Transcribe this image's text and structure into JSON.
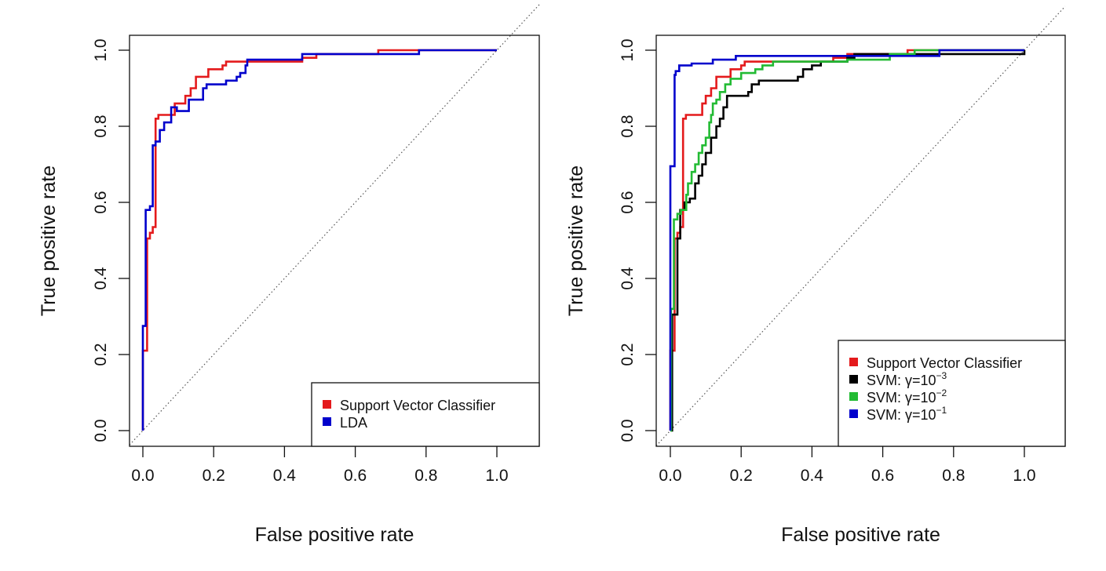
{
  "chart_data": [
    {
      "type": "line",
      "title": "",
      "xlabel": "False positive rate",
      "ylabel": "True positive rate",
      "xlim": [
        0,
        1
      ],
      "ylim": [
        0,
        1
      ],
      "xticks": [
        "0.0",
        "0.2",
        "0.4",
        "0.6",
        "0.8",
        "1.0"
      ],
      "yticks": [
        "0.0",
        "0.2",
        "0.4",
        "0.6",
        "0.8",
        "1.0"
      ],
      "grid": false,
      "legend_position": "bottom-right",
      "reference_line": {
        "style": "dotted",
        "from": [
          0,
          0
        ],
        "to": [
          1,
          1
        ]
      },
      "series": [
        {
          "name": "Support Vector Classifier",
          "color": "#e41a1c",
          "points": [
            [
              0,
              0
            ],
            [
              0,
              0.21
            ],
            [
              0.012,
              0.21
            ],
            [
              0.012,
              0.505
            ],
            [
              0.02,
              0.505
            ],
            [
              0.02,
              0.52
            ],
            [
              0.028,
              0.52
            ],
            [
              0.028,
              0.535
            ],
            [
              0.036,
              0.535
            ],
            [
              0.036,
              0.82
            ],
            [
              0.044,
              0.82
            ],
            [
              0.044,
              0.83
            ],
            [
              0.09,
              0.83
            ],
            [
              0.09,
              0.86
            ],
            [
              0.12,
              0.86
            ],
            [
              0.12,
              0.88
            ],
            [
              0.135,
              0.88
            ],
            [
              0.135,
              0.9
            ],
            [
              0.15,
              0.9
            ],
            [
              0.15,
              0.93
            ],
            [
              0.185,
              0.93
            ],
            [
              0.185,
              0.95
            ],
            [
              0.225,
              0.95
            ],
            [
              0.225,
              0.96
            ],
            [
              0.235,
              0.96
            ],
            [
              0.235,
              0.97
            ],
            [
              0.45,
              0.97
            ],
            [
              0.45,
              0.98
            ],
            [
              0.49,
              0.98
            ],
            [
              0.49,
              0.99
            ],
            [
              0.665,
              0.99
            ],
            [
              0.665,
              1.0
            ],
            [
              1.0,
              1.0
            ]
          ]
        },
        {
          "name": "LDA",
          "color": "#0000cc",
          "points": [
            [
              0,
              0
            ],
            [
              0,
              0.275
            ],
            [
              0.008,
              0.275
            ],
            [
              0.008,
              0.58
            ],
            [
              0.02,
              0.58
            ],
            [
              0.02,
              0.59
            ],
            [
              0.028,
              0.59
            ],
            [
              0.028,
              0.75
            ],
            [
              0.036,
              0.75
            ],
            [
              0.036,
              0.76
            ],
            [
              0.048,
              0.76
            ],
            [
              0.048,
              0.79
            ],
            [
              0.06,
              0.79
            ],
            [
              0.06,
              0.81
            ],
            [
              0.08,
              0.81
            ],
            [
              0.08,
              0.85
            ],
            [
              0.096,
              0.85
            ],
            [
              0.096,
              0.84
            ],
            [
              0.13,
              0.84
            ],
            [
              0.13,
              0.87
            ],
            [
              0.17,
              0.87
            ],
            [
              0.17,
              0.9
            ],
            [
              0.18,
              0.9
            ],
            [
              0.18,
              0.91
            ],
            [
              0.235,
              0.91
            ],
            [
              0.235,
              0.92
            ],
            [
              0.265,
              0.92
            ],
            [
              0.265,
              0.93
            ],
            [
              0.275,
              0.93
            ],
            [
              0.275,
              0.94
            ],
            [
              0.29,
              0.94
            ],
            [
              0.29,
              0.96
            ],
            [
              0.295,
              0.96
            ],
            [
              0.295,
              0.975
            ],
            [
              0.45,
              0.975
            ],
            [
              0.45,
              0.99
            ],
            [
              0.78,
              0.99
            ],
            [
              0.78,
              1.0
            ],
            [
              1.0,
              1.0
            ]
          ]
        }
      ]
    },
    {
      "type": "line",
      "title": "",
      "xlabel": "False positive rate",
      "ylabel": "True positive rate",
      "xlim": [
        0,
        1
      ],
      "ylim": [
        0,
        1
      ],
      "xticks": [
        "0.0",
        "0.2",
        "0.4",
        "0.6",
        "0.8",
        "1.0"
      ],
      "yticks": [
        "0.0",
        "0.2",
        "0.4",
        "0.6",
        "0.8",
        "1.0"
      ],
      "grid": false,
      "legend_position": "bottom-right",
      "reference_line": {
        "style": "dotted",
        "from": [
          0,
          0
        ],
        "to": [
          1,
          1
        ]
      },
      "series": [
        {
          "name": "Support Vector Classifier",
          "label_base": "Support Vector Classifier",
          "label_sup": "",
          "color": "#e41a1c",
          "points": [
            [
              0,
              0
            ],
            [
              0,
              0.21
            ],
            [
              0.012,
              0.21
            ],
            [
              0.012,
              0.505
            ],
            [
              0.02,
              0.505
            ],
            [
              0.02,
              0.52
            ],
            [
              0.028,
              0.52
            ],
            [
              0.028,
              0.535
            ],
            [
              0.036,
              0.535
            ],
            [
              0.036,
              0.82
            ],
            [
              0.044,
              0.82
            ],
            [
              0.044,
              0.83
            ],
            [
              0.09,
              0.83
            ],
            [
              0.09,
              0.86
            ],
            [
              0.1,
              0.86
            ],
            [
              0.1,
              0.88
            ],
            [
              0.115,
              0.88
            ],
            [
              0.115,
              0.9
            ],
            [
              0.13,
              0.9
            ],
            [
              0.13,
              0.93
            ],
            [
              0.17,
              0.93
            ],
            [
              0.17,
              0.95
            ],
            [
              0.2,
              0.95
            ],
            [
              0.2,
              0.96
            ],
            [
              0.21,
              0.96
            ],
            [
              0.21,
              0.97
            ],
            [
              0.46,
              0.97
            ],
            [
              0.46,
              0.98
            ],
            [
              0.5,
              0.98
            ],
            [
              0.5,
              0.99
            ],
            [
              0.67,
              0.99
            ],
            [
              0.67,
              1.0
            ],
            [
              1.0,
              1.0
            ]
          ]
        },
        {
          "name": "SVM: γ=10^-3",
          "label_base": "SVM: γ=10",
          "label_sup": "−3",
          "color": "#000000",
          "points": [
            [
              0,
              0
            ],
            [
              0.005,
              0
            ],
            [
              0.005,
              0.305
            ],
            [
              0.02,
              0.305
            ],
            [
              0.02,
              0.505
            ],
            [
              0.028,
              0.505
            ],
            [
              0.028,
              0.58
            ],
            [
              0.04,
              0.58
            ],
            [
              0.04,
              0.6
            ],
            [
              0.055,
              0.6
            ],
            [
              0.055,
              0.61
            ],
            [
              0.07,
              0.61
            ],
            [
              0.07,
              0.65
            ],
            [
              0.08,
              0.65
            ],
            [
              0.08,
              0.67
            ],
            [
              0.09,
              0.67
            ],
            [
              0.09,
              0.7
            ],
            [
              0.1,
              0.7
            ],
            [
              0.1,
              0.73
            ],
            [
              0.115,
              0.73
            ],
            [
              0.115,
              0.77
            ],
            [
              0.13,
              0.77
            ],
            [
              0.13,
              0.8
            ],
            [
              0.14,
              0.8
            ],
            [
              0.14,
              0.82
            ],
            [
              0.15,
              0.82
            ],
            [
              0.15,
              0.85
            ],
            [
              0.16,
              0.85
            ],
            [
              0.16,
              0.88
            ],
            [
              0.22,
              0.88
            ],
            [
              0.22,
              0.89
            ],
            [
              0.23,
              0.89
            ],
            [
              0.23,
              0.91
            ],
            [
              0.25,
              0.91
            ],
            [
              0.25,
              0.92
            ],
            [
              0.36,
              0.92
            ],
            [
              0.36,
              0.93
            ],
            [
              0.375,
              0.93
            ],
            [
              0.375,
              0.95
            ],
            [
              0.4,
              0.95
            ],
            [
              0.4,
              0.96
            ],
            [
              0.425,
              0.96
            ],
            [
              0.425,
              0.97
            ],
            [
              0.5,
              0.97
            ],
            [
              0.5,
              0.98
            ],
            [
              0.52,
              0.98
            ],
            [
              0.52,
              0.99
            ],
            [
              1.0,
              0.99
            ],
            [
              1.0,
              1.0
            ]
          ]
        },
        {
          "name": "SVM: γ=10^-2",
          "label_base": "SVM: γ=10",
          "label_sup": "−2",
          "color": "#22bb33",
          "points": [
            [
              0,
              0
            ],
            [
              0.002,
              0
            ],
            [
              0.002,
              0.32
            ],
            [
              0.01,
              0.32
            ],
            [
              0.01,
              0.555
            ],
            [
              0.02,
              0.555
            ],
            [
              0.02,
              0.57
            ],
            [
              0.03,
              0.57
            ],
            [
              0.03,
              0.58
            ],
            [
              0.045,
              0.58
            ],
            [
              0.045,
              0.62
            ],
            [
              0.05,
              0.62
            ],
            [
              0.05,
              0.65
            ],
            [
              0.06,
              0.65
            ],
            [
              0.06,
              0.68
            ],
            [
              0.07,
              0.68
            ],
            [
              0.07,
              0.7
            ],
            [
              0.08,
              0.7
            ],
            [
              0.08,
              0.73
            ],
            [
              0.09,
              0.73
            ],
            [
              0.09,
              0.75
            ],
            [
              0.1,
              0.75
            ],
            [
              0.1,
              0.77
            ],
            [
              0.11,
              0.77
            ],
            [
              0.11,
              0.81
            ],
            [
              0.115,
              0.81
            ],
            [
              0.115,
              0.83
            ],
            [
              0.12,
              0.83
            ],
            [
              0.12,
              0.86
            ],
            [
              0.13,
              0.86
            ],
            [
              0.13,
              0.87
            ],
            [
              0.14,
              0.87
            ],
            [
              0.14,
              0.89
            ],
            [
              0.155,
              0.89
            ],
            [
              0.155,
              0.91
            ],
            [
              0.17,
              0.91
            ],
            [
              0.17,
              0.925
            ],
            [
              0.2,
              0.925
            ],
            [
              0.2,
              0.94
            ],
            [
              0.24,
              0.94
            ],
            [
              0.24,
              0.95
            ],
            [
              0.26,
              0.95
            ],
            [
              0.26,
              0.96
            ],
            [
              0.29,
              0.96
            ],
            [
              0.29,
              0.97
            ],
            [
              0.5,
              0.97
            ],
            [
              0.5,
              0.975
            ],
            [
              0.62,
              0.975
            ],
            [
              0.62,
              0.99
            ],
            [
              0.69,
              0.99
            ],
            [
              0.69,
              1.0
            ],
            [
              1.0,
              1.0
            ]
          ]
        },
        {
          "name": "SVM: γ=10^-1",
          "label_base": "SVM: γ=10",
          "label_sup": "−1",
          "color": "#0000cc",
          "points": [
            [
              0,
              0
            ],
            [
              0,
              0.695
            ],
            [
              0.012,
              0.695
            ],
            [
              0.012,
              0.935
            ],
            [
              0.015,
              0.935
            ],
            [
              0.015,
              0.945
            ],
            [
              0.025,
              0.945
            ],
            [
              0.025,
              0.96
            ],
            [
              0.06,
              0.96
            ],
            [
              0.06,
              0.965
            ],
            [
              0.12,
              0.965
            ],
            [
              0.12,
              0.975
            ],
            [
              0.185,
              0.975
            ],
            [
              0.185,
              0.985
            ],
            [
              0.76,
              0.985
            ],
            [
              0.76,
              1.0
            ],
            [
              1.0,
              1.0
            ]
          ]
        }
      ]
    }
  ]
}
